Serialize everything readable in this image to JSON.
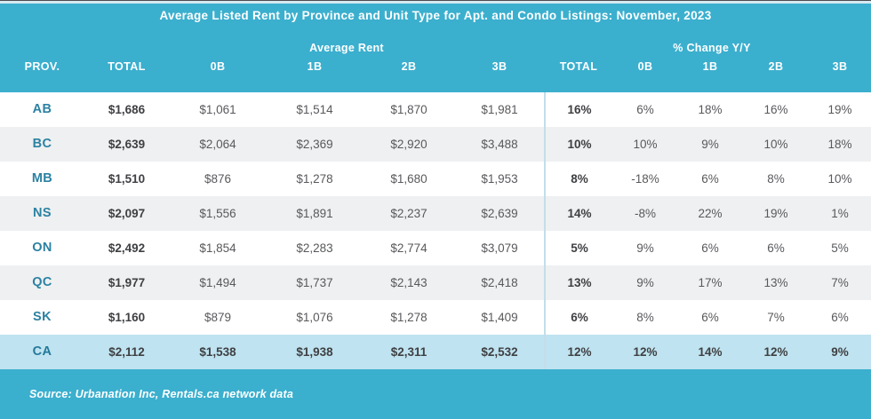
{
  "title": "Average Listed Rent by Province and Unit Type for Apt. and Condo Listings: November, 2023",
  "table": {
    "group_headers": {
      "rent": "Average Rent",
      "change": "% Change Y/Y"
    },
    "columns": [
      "PROV.",
      "TOTAL",
      "0B",
      "1B",
      "2B",
      "3B",
      "TOTAL",
      "0B",
      "1B",
      "2B",
      "3B"
    ],
    "rows": [
      {
        "prov": "AB",
        "rent": [
          "$1,686",
          "$1,061",
          "$1,514",
          "$1,870",
          "$1,981"
        ],
        "change": [
          "16%",
          "6%",
          "18%",
          "16%",
          "19%"
        ],
        "highlight": false
      },
      {
        "prov": "BC",
        "rent": [
          "$2,639",
          "$2,064",
          "$2,369",
          "$2,920",
          "$3,488"
        ],
        "change": [
          "10%",
          "10%",
          "9%",
          "10%",
          "18%"
        ],
        "highlight": false
      },
      {
        "prov": "MB",
        "rent": [
          "$1,510",
          "$876",
          "$1,278",
          "$1,680",
          "$1,953"
        ],
        "change": [
          "8%",
          "-18%",
          "6%",
          "8%",
          "10%"
        ],
        "highlight": false
      },
      {
        "prov": "NS",
        "rent": [
          "$2,097",
          "$1,556",
          "$1,891",
          "$2,237",
          "$2,639"
        ],
        "change": [
          "14%",
          "-8%",
          "22%",
          "19%",
          "1%"
        ],
        "highlight": false
      },
      {
        "prov": "ON",
        "rent": [
          "$2,492",
          "$1,854",
          "$2,283",
          "$2,774",
          "$3,079"
        ],
        "change": [
          "5%",
          "9%",
          "6%",
          "6%",
          "5%"
        ],
        "highlight": false
      },
      {
        "prov": "QC",
        "rent": [
          "$1,977",
          "$1,494",
          "$1,737",
          "$2,143",
          "$2,418"
        ],
        "change": [
          "13%",
          "9%",
          "17%",
          "13%",
          "7%"
        ],
        "highlight": false
      },
      {
        "prov": "SK",
        "rent": [
          "$1,160",
          "$879",
          "$1,076",
          "$1,278",
          "$1,409"
        ],
        "change": [
          "6%",
          "8%",
          "6%",
          "7%",
          "6%"
        ],
        "highlight": false
      },
      {
        "prov": "CA",
        "rent": [
          "$2,112",
          "$1,538",
          "$1,938",
          "$2,311",
          "$2,532"
        ],
        "change": [
          "12%",
          "12%",
          "14%",
          "12%",
          "9%"
        ],
        "highlight": true
      }
    ]
  },
  "source": "Source: Urbanation Inc, Rentals.ca network data",
  "colors": {
    "header_teal": "#3BAFCE",
    "row_alt_gray": "#EEF0F1",
    "highlight_row_blue": "#BFE3F0",
    "province_teal": "#2B81A2",
    "text_dark": "#3F4043",
    "text_gray": "#58595C",
    "divider": "#C2DEE9"
  },
  "chart_data": {
    "type": "table",
    "title": "Average Listed Rent by Province and Unit Type for Apt. and Condo Listings: November, 2023",
    "column_groups": [
      "Average Rent",
      "% Change Y/Y"
    ],
    "columns": [
      "PROV.",
      "Rent TOTAL",
      "Rent 0B",
      "Rent 1B",
      "Rent 2B",
      "Rent 3B",
      "Change TOTAL",
      "Change 0B",
      "Change 1B",
      "Change 2B",
      "Change 3B"
    ],
    "rows": [
      [
        "AB",
        1686,
        1061,
        1514,
        1870,
        1981,
        16,
        6,
        18,
        16,
        19
      ],
      [
        "BC",
        2639,
        2064,
        2369,
        2920,
        3488,
        10,
        10,
        9,
        10,
        18
      ],
      [
        "MB",
        1510,
        876,
        1278,
        1680,
        1953,
        8,
        -18,
        6,
        8,
        10
      ],
      [
        "NS",
        2097,
        1556,
        1891,
        2237,
        2639,
        14,
        -8,
        22,
        19,
        1
      ],
      [
        "ON",
        2492,
        1854,
        2283,
        2774,
        3079,
        5,
        9,
        6,
        6,
        5
      ],
      [
        "QC",
        1977,
        1494,
        1737,
        2143,
        2418,
        13,
        9,
        17,
        13,
        7
      ],
      [
        "SK",
        1160,
        879,
        1076,
        1278,
        1409,
        6,
        8,
        6,
        7,
        6
      ],
      [
        "CA",
        2112,
        1538,
        1938,
        2311,
        2532,
        12,
        12,
        14,
        12,
        9
      ]
    ],
    "rent_units": "CAD $ per month",
    "change_units": "% year-over-year",
    "source": "Source: Urbanation Inc, Rentals.ca network data"
  }
}
